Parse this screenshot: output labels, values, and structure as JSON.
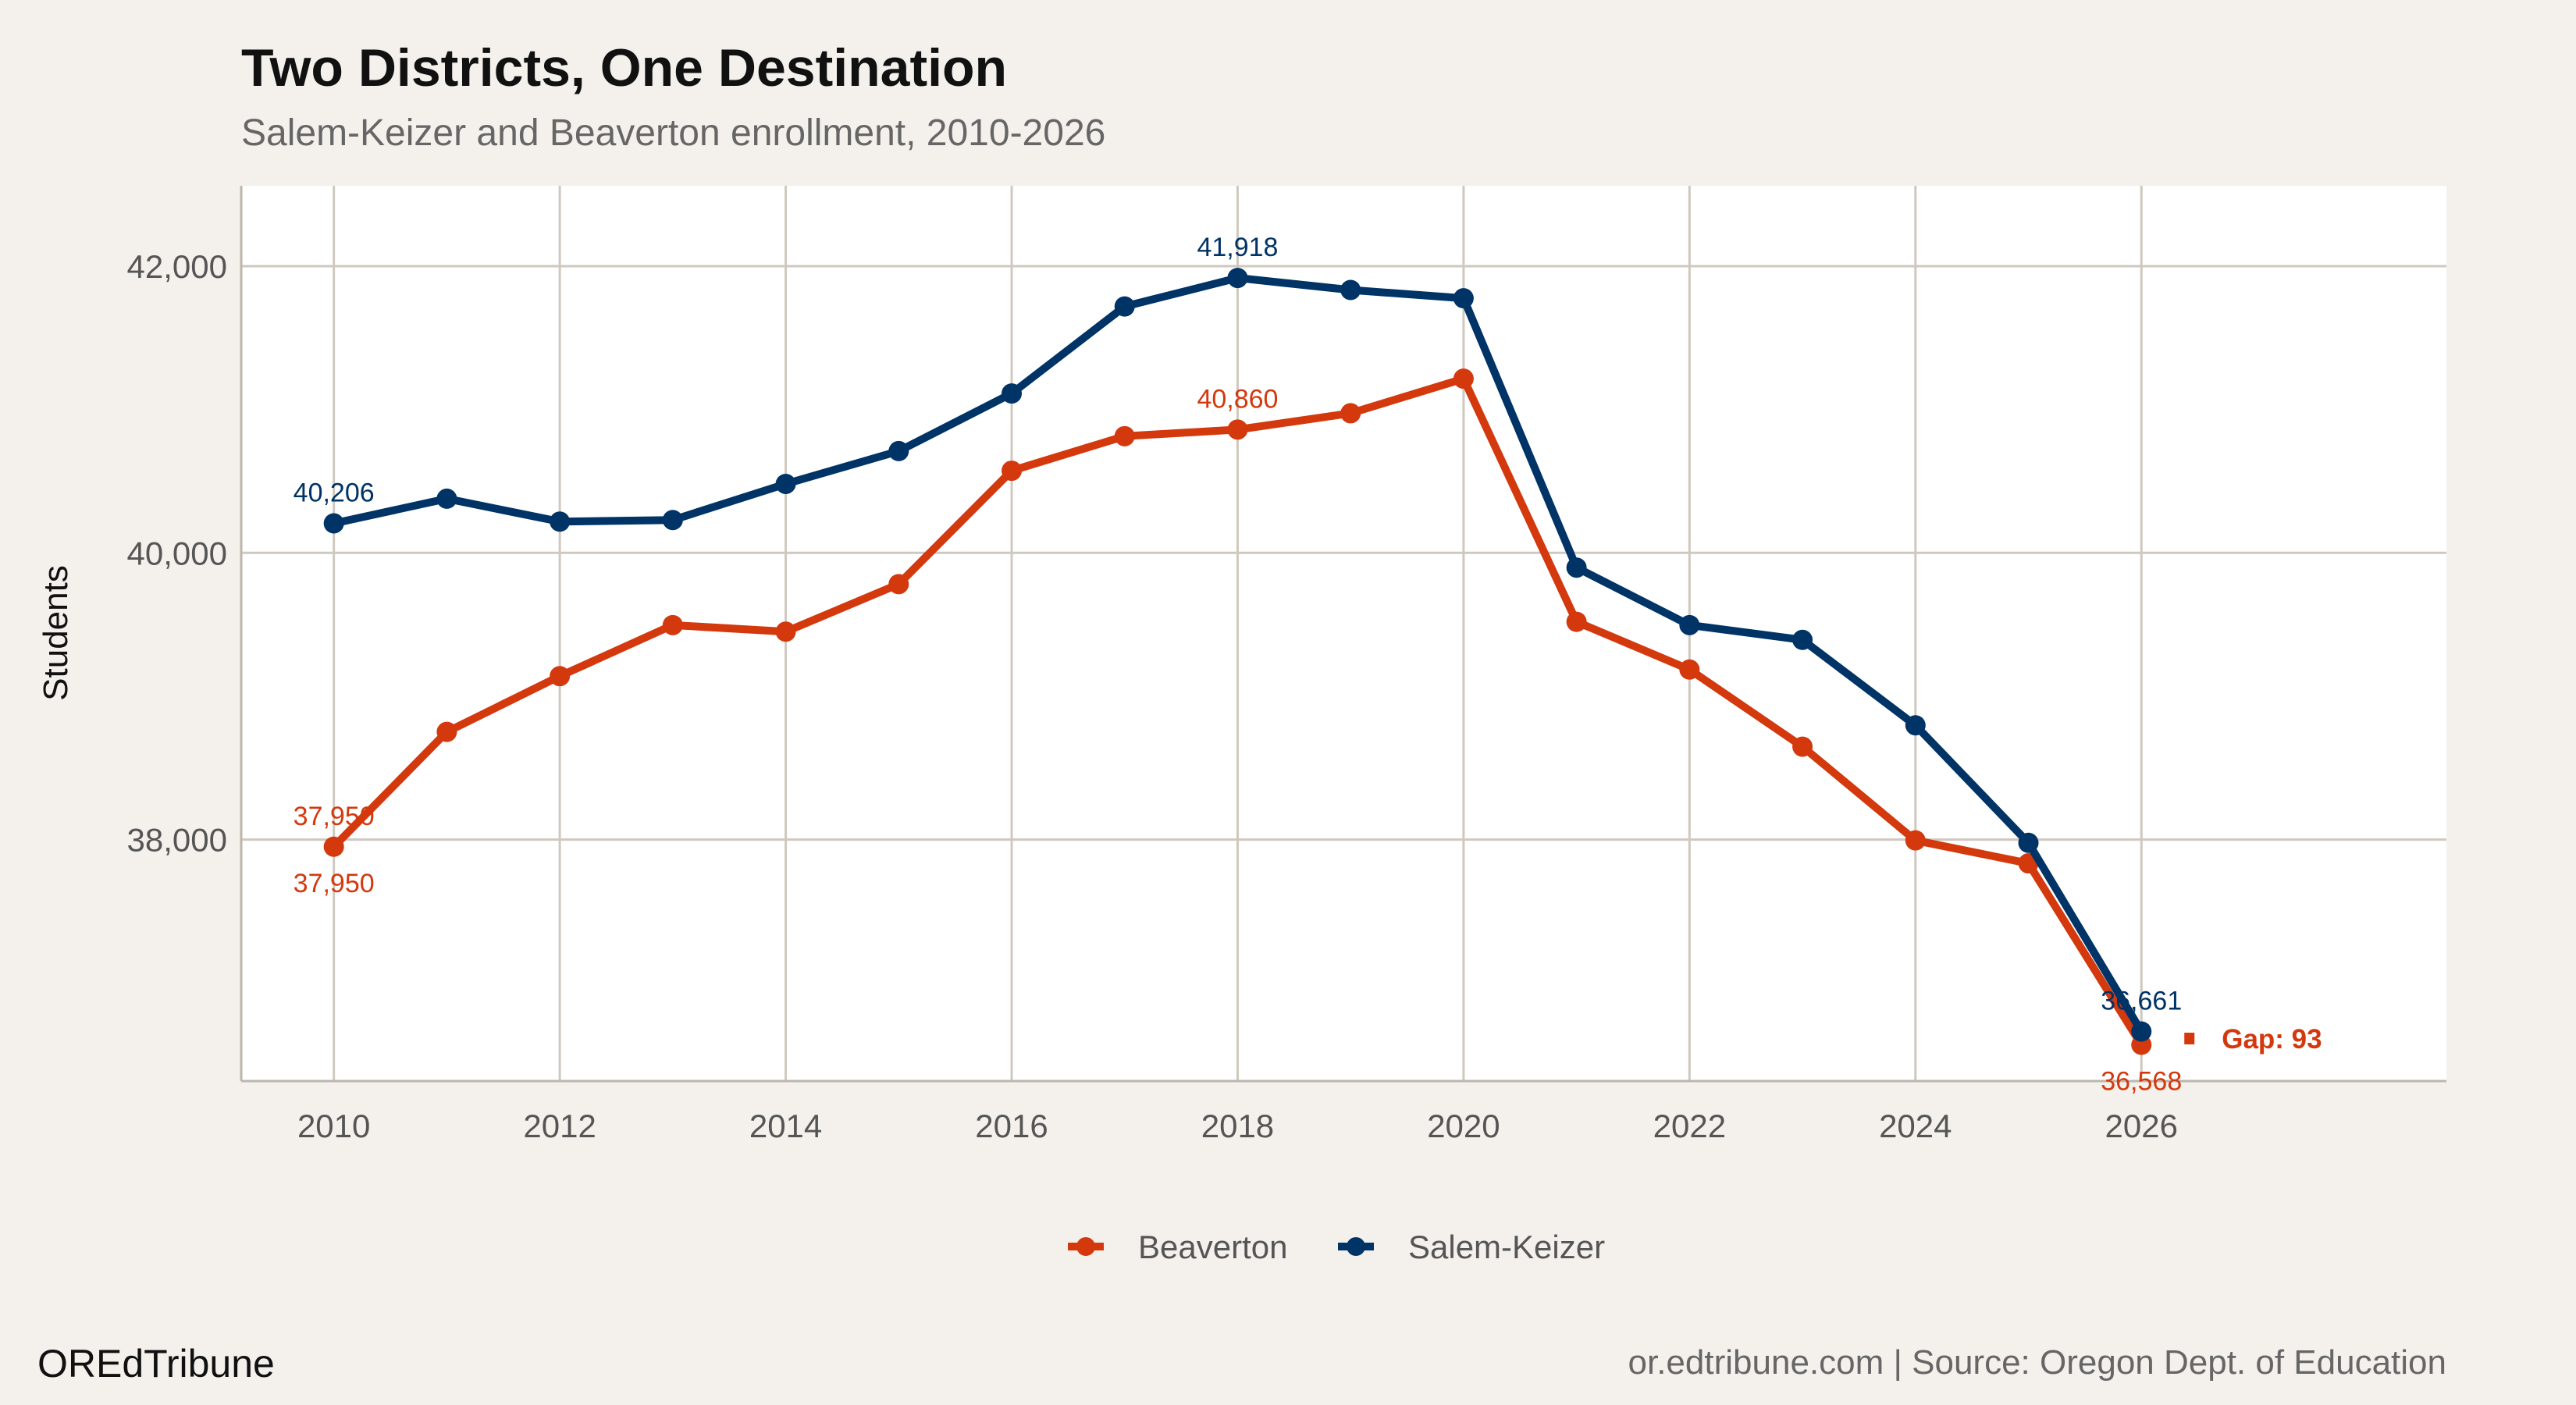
{
  "brand": "OREdTribune",
  "footer_source": "or.edtribune.com | Source: Oregon Dept. of Education",
  "chart_data": {
    "type": "line",
    "title": "Two Districts, One Destination",
    "subtitle": "Salem-Keizer and Beaverton enrollment, 2010-2026",
    "xlabel": "",
    "ylabel": "Students",
    "x": [
      2010,
      2011,
      2012,
      2013,
      2014,
      2015,
      2016,
      2017,
      2018,
      2019,
      2020,
      2021,
      2022,
      2023,
      2024,
      2025,
      2026
    ],
    "xlim": [
      2009.18,
      2028.7
    ],
    "ylim": [
      36315,
      42561
    ],
    "x_ticks": [
      2010,
      2012,
      2014,
      2016,
      2018,
      2020,
      2022,
      2024,
      2026
    ],
    "x_tick_labels": [
      "2010",
      "2012",
      "2014",
      "2016",
      "2018",
      "2020",
      "2022",
      "2024",
      "2026"
    ],
    "y_ticks": [
      38000,
      40000,
      42000
    ],
    "y_tick_labels": [
      "38,000",
      "40,000",
      "42,000"
    ],
    "grid": true,
    "legend_position": "bottom",
    "series": [
      {
        "name": "Beaverton",
        "color": "#D4380D",
        "values": [
          37950,
          38751,
          39140,
          39496,
          39450,
          39782,
          40573,
          40814,
          40860,
          40974,
          41215,
          39519,
          39186,
          38648,
          37994,
          37834,
          36568
        ]
      },
      {
        "name": "Salem-Keizer",
        "color": "#003366",
        "values": [
          40206,
          40378,
          40218,
          40229,
          40481,
          40710,
          41112,
          41719,
          41918,
          41834,
          41776,
          39897,
          39496,
          39393,
          38797,
          37977,
          36661
        ]
      }
    ],
    "data_labels": [
      {
        "series": 1,
        "x": 2010,
        "text": "40,206",
        "position": "above"
      },
      {
        "series": 1,
        "x": 2018,
        "text": "41,918",
        "position": "above"
      },
      {
        "series": 1,
        "x": 2026,
        "text": "36,661",
        "position": "above"
      },
      {
        "series": 0,
        "x": 2010,
        "text": "37,950",
        "position": "above"
      },
      {
        "series": 0,
        "x": 2010,
        "text": "37,950",
        "position": "below"
      },
      {
        "series": 0,
        "x": 2018,
        "text": "40,860",
        "position": "above"
      },
      {
        "series": 0,
        "x": 2026,
        "text": "36,568",
        "position": "below"
      }
    ],
    "annotation": {
      "text": "Gap: 93",
      "color": "#D4380D"
    }
  },
  "colors": {
    "background": "#F4F1EC",
    "panel": "#FFFFFF",
    "grid": "#CFC8BE"
  }
}
